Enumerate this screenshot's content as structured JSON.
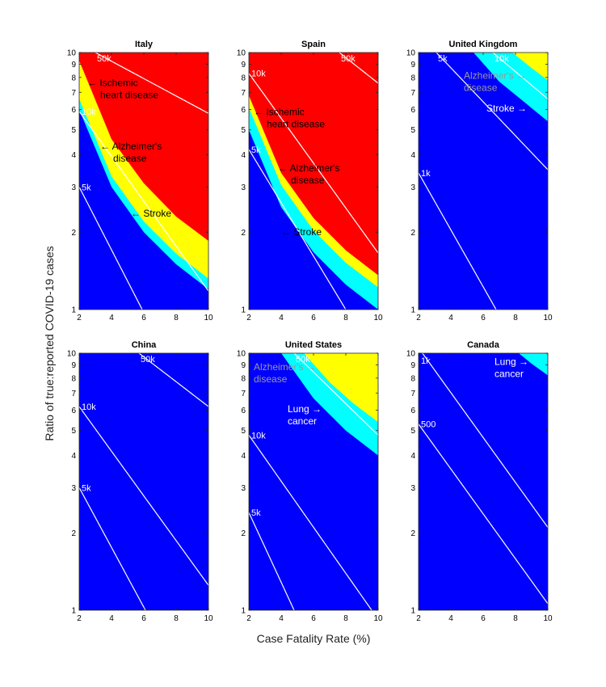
{
  "figure": {
    "xlabel": "Case Fatality Rate (%)",
    "ylabel": "Ratio of true:reported COVID-19 cases"
  },
  "colors": {
    "blue": "#0000ff",
    "cyan": "#00ffff",
    "yellow": "#ffff00",
    "red": "#ff0000",
    "contour": "#ffffff",
    "gray_label": "#999999"
  },
  "chart_data": [
    {
      "type": "contour",
      "title": "Italy",
      "xlim": [
        2,
        10
      ],
      "ylim": [
        1,
        10
      ],
      "yscale": "log",
      "xticks": [
        2,
        4,
        6,
        8,
        10
      ],
      "yticks": [
        1,
        2,
        3,
        4,
        5,
        6,
        7,
        8,
        9,
        10
      ],
      "boundaries": [
        {
          "name": "Stroke",
          "color": "cyan",
          "x": [
            2,
            4,
            6,
            8,
            10
          ],
          "y": [
            6.0,
            3.0,
            2.0,
            1.5,
            1.2
          ]
        },
        {
          "name": "Alzheimer's disease",
          "color": "yellow",
          "x": [
            2,
            4,
            6,
            8,
            10
          ],
          "y": [
            6.6,
            3.3,
            2.2,
            1.65,
            1.32
          ]
        },
        {
          "name": "Ischemic heart disease",
          "color": "red",
          "x": [
            2,
            4,
            6,
            8,
            10
          ],
          "y": [
            9.3,
            4.6,
            3.1,
            2.3,
            1.85
          ]
        }
      ],
      "contours": [
        {
          "label": "50k",
          "x": [
            3.0,
            10
          ],
          "y": [
            10,
            5.8
          ]
        },
        {
          "label": "10k",
          "x": [
            2,
            10
          ],
          "y": [
            5.9,
            1.18
          ]
        },
        {
          "label": "5k",
          "x": [
            2,
            5.9
          ],
          "y": [
            3.0,
            1
          ]
        }
      ],
      "annotations": [
        {
          "lines": [
            "← Ischemic",
            "heart disease"
          ],
          "x": 2.5,
          "y": 7.4,
          "color": "black"
        },
        {
          "lines": [
            "← Alzheimer's",
            "disease"
          ],
          "x": 3.3,
          "y": 4.2,
          "color": "black"
        },
        {
          "lines": [
            "← Stroke"
          ],
          "x": 5.2,
          "y": 2.3,
          "color": "black"
        }
      ]
    },
    {
      "type": "contour",
      "title": "Spain",
      "xlim": [
        2,
        10
      ],
      "ylim": [
        1,
        10
      ],
      "yscale": "log",
      "xticks": [
        2,
        4,
        6,
        8,
        10
      ],
      "yticks": [
        1,
        2,
        3,
        4,
        5,
        6,
        7,
        8,
        9,
        10
      ],
      "boundaries": [
        {
          "name": "Stroke",
          "color": "cyan",
          "x": [
            2,
            4,
            6,
            8,
            10
          ],
          "y": [
            5.0,
            2.5,
            1.67,
            1.25,
            1.0
          ]
        },
        {
          "name": "Alzheimer's disease",
          "color": "yellow",
          "x": [
            2,
            4,
            6,
            8,
            10
          ],
          "y": [
            6.1,
            3.05,
            2.03,
            1.52,
            1.22
          ]
        },
        {
          "name": "Ischemic heart disease",
          "color": "red",
          "x": [
            2,
            4,
            6,
            8,
            10
          ],
          "y": [
            6.8,
            3.4,
            2.27,
            1.7,
            1.36
          ]
        }
      ],
      "contours": [
        {
          "label": "50k",
          "x": [
            7.6,
            10
          ],
          "y": [
            10,
            7.6
          ]
        },
        {
          "label": "10k",
          "x": [
            2,
            10
          ],
          "y": [
            8.3,
            1.66
          ]
        },
        {
          "label": "5k",
          "x": [
            2,
            8.0
          ],
          "y": [
            4.2,
            1
          ]
        }
      ],
      "annotations": [
        {
          "lines": [
            "← Ischemic",
            "heart disease"
          ],
          "x": 2.3,
          "y": 5.7,
          "color": "black"
        },
        {
          "lines": [
            "← Alzheimer's",
            "disease"
          ],
          "x": 3.8,
          "y": 3.45,
          "color": "black"
        },
        {
          "lines": [
            "← Stroke"
          ],
          "x": 4.0,
          "y": 1.95,
          "color": "black"
        }
      ]
    },
    {
      "type": "contour",
      "title": "United Kingdom",
      "xlim": [
        2,
        10
      ],
      "ylim": [
        1,
        10
      ],
      "yscale": "log",
      "xticks": [
        2,
        4,
        6,
        8,
        10
      ],
      "yticks": [
        1,
        2,
        3,
        4,
        5,
        6,
        7,
        8,
        9,
        10
      ],
      "boundaries": [
        {
          "name": "Stroke",
          "color": "cyan",
          "x": [
            5.4,
            7,
            10
          ],
          "y": [
            10,
            7.7,
            5.4
          ]
        },
        {
          "name": "Alzheimer's disease",
          "color": "yellow",
          "x": [
            7.8,
            9,
            10
          ],
          "y": [
            10,
            8.7,
            7.8
          ]
        },
        {
          "name": "Ischemic heart disease",
          "color": "red",
          "x": [],
          "y": []
        }
      ],
      "contours": [
        {
          "label": "10k",
          "x": [
            6.6,
            10
          ],
          "y": [
            10,
            6.6
          ]
        },
        {
          "label": "5k",
          "x": [
            3.1,
            10
          ],
          "y": [
            10,
            3.5
          ]
        },
        {
          "label": "1k",
          "x": [
            2,
            6.8
          ],
          "y": [
            3.4,
            1
          ]
        }
      ],
      "annotations": [
        {
          "lines": [
            "Alzheimer's →",
            "disease"
          ],
          "x": 4.8,
          "y": 7.9,
          "color": "gray"
        },
        {
          "lines": [
            "Stroke →"
          ],
          "x": 6.2,
          "y": 5.9,
          "color": "white"
        }
      ]
    },
    {
      "type": "contour",
      "title": "China",
      "xlim": [
        2,
        10
      ],
      "ylim": [
        1,
        10
      ],
      "yscale": "log",
      "xticks": [
        2,
        4,
        6,
        8,
        10
      ],
      "yticks": [
        1,
        2,
        3,
        4,
        5,
        6,
        7,
        8,
        9,
        10
      ],
      "boundaries": [],
      "contours": [
        {
          "label": "50k",
          "x": [
            5.7,
            10
          ],
          "y": [
            10,
            6.2
          ]
        },
        {
          "label": "10k",
          "x": [
            2,
            10
          ],
          "y": [
            6.2,
            1.25
          ]
        },
        {
          "label": "5k",
          "x": [
            2,
            6.1
          ],
          "y": [
            3.0,
            1
          ]
        }
      ],
      "annotations": []
    },
    {
      "type": "contour",
      "title": "United States",
      "xlim": [
        2,
        10
      ],
      "ylim": [
        1,
        10
      ],
      "yscale": "log",
      "xticks": [
        2,
        4,
        6,
        8,
        10
      ],
      "yticks": [
        1,
        2,
        3,
        4,
        5,
        6,
        7,
        8,
        9,
        10
      ],
      "boundaries": [
        {
          "name": "Lung cancer",
          "color": "cyan",
          "x": [
            4.0,
            6,
            8,
            10
          ],
          "y": [
            10,
            6.67,
            5.0,
            4.0
          ]
        },
        {
          "name": "Alzheimer's disease",
          "color": "yellow",
          "x": [
            5.4,
            7,
            8.5,
            10
          ],
          "y": [
            10,
            7.7,
            6.35,
            5.4
          ]
        }
      ],
      "contours": [
        {
          "label": "50k",
          "x": [
            4.8,
            10
          ],
          "y": [
            10,
            4.8
          ]
        },
        {
          "label": "10k",
          "x": [
            2,
            9.6
          ],
          "y": [
            4.8,
            1
          ]
        },
        {
          "label": "5k",
          "x": [
            2,
            4.8
          ],
          "y": [
            2.4,
            1
          ]
        }
      ],
      "annotations": [
        {
          "lines": [
            "Alzheimer's →",
            "disease"
          ],
          "x": 2.3,
          "y": 8.6,
          "color": "gray"
        },
        {
          "lines": [
            "Lung →",
            "cancer"
          ],
          "x": 4.4,
          "y": 5.9,
          "color": "white"
        }
      ]
    },
    {
      "type": "contour",
      "title": "Canada",
      "xlim": [
        2,
        10
      ],
      "ylim": [
        1,
        10
      ],
      "yscale": "log",
      "xticks": [
        2,
        4,
        6,
        8,
        10
      ],
      "yticks": [
        1,
        2,
        3,
        4,
        5,
        6,
        7,
        8,
        9,
        10
      ],
      "boundaries": [
        {
          "name": "Lung cancer",
          "color": "cyan",
          "x": [
            8.2,
            9,
            10
          ],
          "y": [
            10,
            9.1,
            8.2
          ]
        }
      ],
      "contours": [
        {
          "label": "1k",
          "x": [
            2,
            10
          ],
          "y": [
            10.5,
            2.1
          ]
        },
        {
          "label": "500",
          "x": [
            2,
            10
          ],
          "y": [
            5.3,
            1.06
          ]
        }
      ],
      "annotations": [
        {
          "lines": [
            "Lung →",
            "cancer"
          ],
          "x": 6.7,
          "y": 9.0,
          "color": "white"
        }
      ]
    }
  ]
}
